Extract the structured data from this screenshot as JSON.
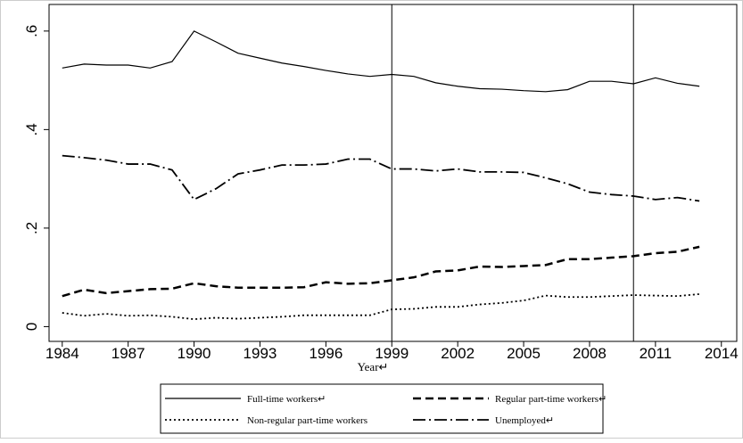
{
  "chart_data": {
    "type": "line",
    "x": [
      1984,
      1985,
      1986,
      1987,
      1988,
      1989,
      1990,
      1991,
      1992,
      1993,
      1994,
      1995,
      1996,
      1997,
      1998,
      1999,
      2000,
      2001,
      2002,
      2003,
      2004,
      2005,
      2006,
      2007,
      2008,
      2009,
      2010,
      2011,
      2012,
      2013
    ],
    "series": [
      {
        "name": "Full-time workers↵",
        "color": "#000000",
        "dash": "none",
        "values": [
          0.525,
          0.533,
          0.531,
          0.531,
          0.525,
          0.538,
          0.6,
          0.578,
          0.555,
          0.545,
          0.535,
          0.528,
          0.52,
          0.513,
          0.508,
          0.512,
          0.508,
          0.495,
          0.488,
          0.483,
          0.482,
          0.479,
          0.477,
          0.481,
          0.498,
          0.498,
          0.493,
          0.505,
          0.494,
          0.488
        ]
      },
      {
        "name": "Regular part-time workers↵",
        "color": "#000000",
        "dash": "9,5",
        "values": [
          0.062,
          0.075,
          0.068,
          0.072,
          0.076,
          0.077,
          0.088,
          0.082,
          0.079,
          0.079,
          0.079,
          0.08,
          0.09,
          0.087,
          0.088,
          0.094,
          0.1,
          0.112,
          0.114,
          0.122,
          0.121,
          0.123,
          0.125,
          0.137,
          0.137,
          0.14,
          0.143,
          0.149,
          0.152,
          0.162
        ]
      },
      {
        "name": "Non-regular part-time workers",
        "color": "#000000",
        "dash": "2,3",
        "values": [
          0.028,
          0.022,
          0.026,
          0.022,
          0.023,
          0.02,
          0.015,
          0.018,
          0.016,
          0.018,
          0.02,
          0.023,
          0.023,
          0.023,
          0.023,
          0.035,
          0.036,
          0.04,
          0.04,
          0.045,
          0.048,
          0.053,
          0.063,
          0.06,
          0.06,
          0.062,
          0.064,
          0.063,
          0.062,
          0.066
        ]
      },
      {
        "name": "Unemployed↵",
        "color": "#000000",
        "dash": "14,4,2,4",
        "values": [
          0.347,
          0.343,
          0.338,
          0.33,
          0.33,
          0.318,
          0.258,
          0.28,
          0.31,
          0.318,
          0.328,
          0.328,
          0.33,
          0.34,
          0.34,
          0.32,
          0.32,
          0.316,
          0.32,
          0.314,
          0.314,
          0.313,
          0.302,
          0.29,
          0.273,
          0.268,
          0.265,
          0.258,
          0.262,
          0.255
        ]
      }
    ],
    "x_label": "Year↵",
    "xlim": [
      1983.4,
      2014.7
    ],
    "xticks": [
      1984,
      1987,
      1990,
      1993,
      1996,
      1999,
      2002,
      2005,
      2008,
      2011,
      2014
    ],
    "ylim": [
      -0.03,
      0.654
    ],
    "yticks": [
      0,
      {
        "value": 0.2,
        "label": ".2"
      },
      {
        "value": 0.4,
        "label": ".4"
      },
      {
        "value": 0.6,
        "label": ".6"
      }
    ],
    "xlines": [
      1999,
      2010
    ]
  }
}
